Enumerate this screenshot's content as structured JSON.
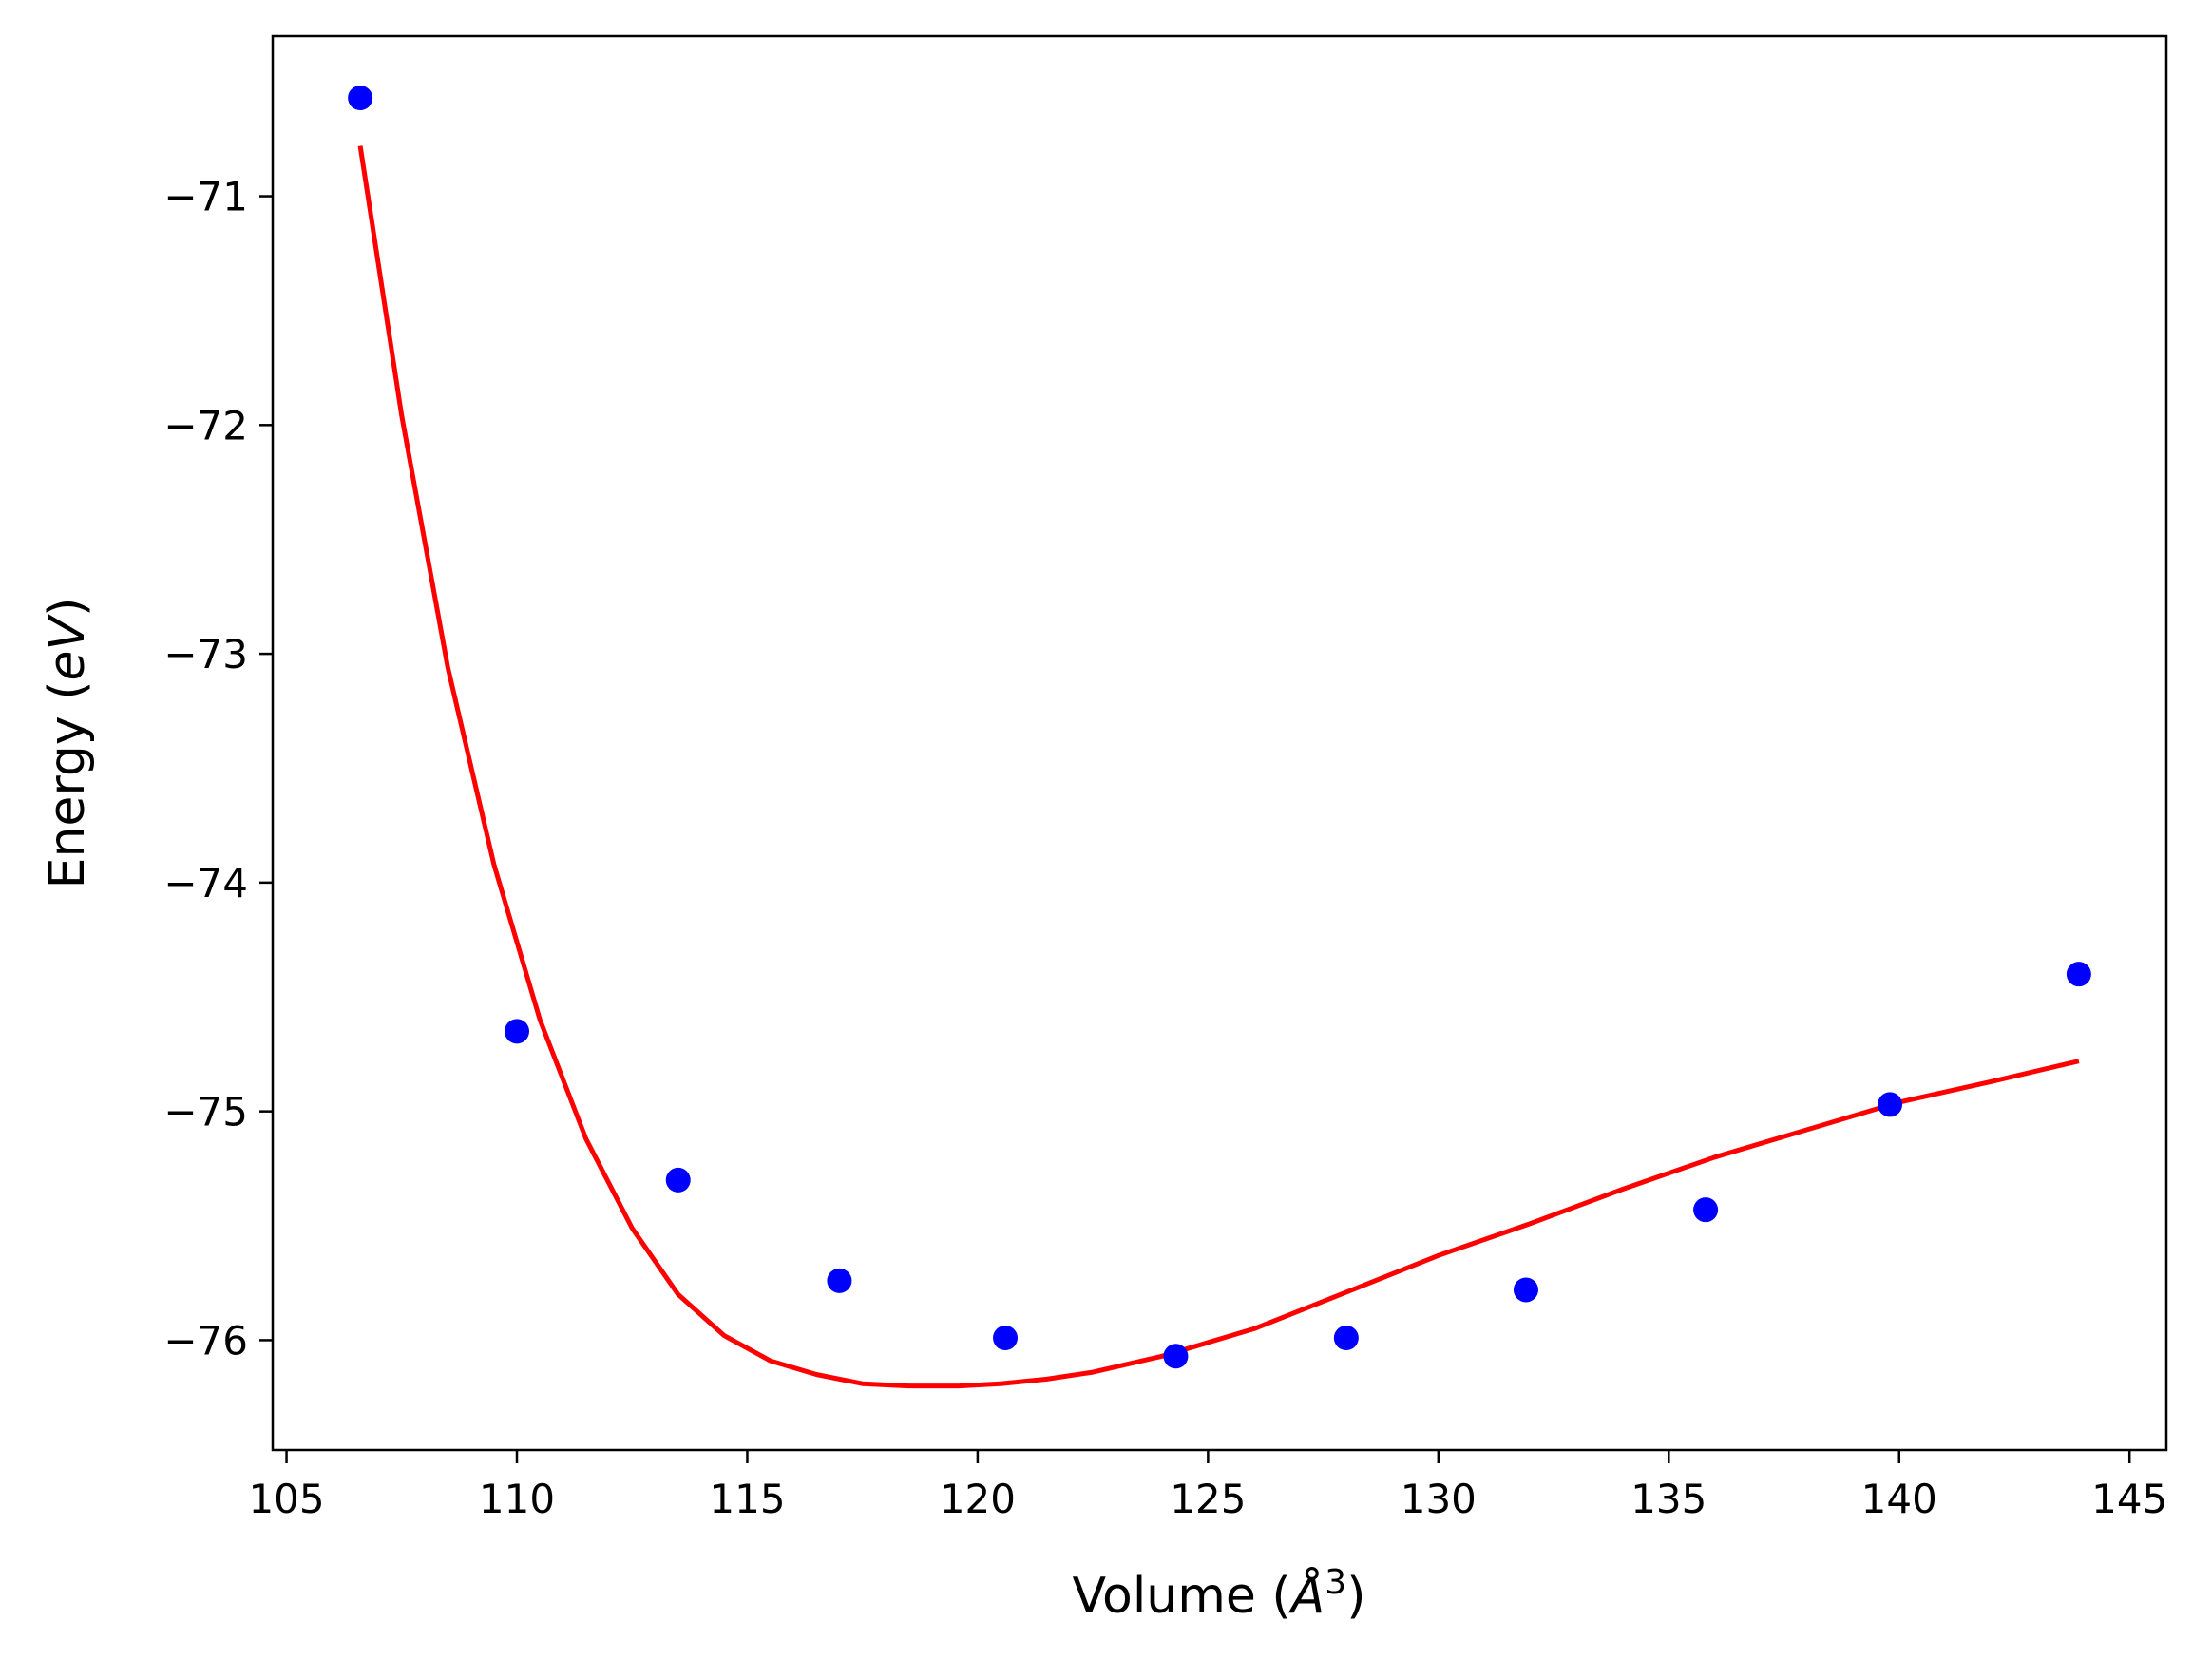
{
  "chart_data": {
    "type": "scatter",
    "title": "",
    "xlabel": "Volume (Å³)",
    "xlabel_parts": {
      "prefix": "Volume (",
      "italic": "Å",
      "sup": "3",
      "suffix": ")"
    },
    "ylabel": "Energy (eV)",
    "ylabel_parts": {
      "prefix": "Energy (",
      "italic": "eV",
      "suffix": ")"
    },
    "xlim": [
      104.7,
      145.8
    ],
    "ylim": [
      -76.48,
      -70.3
    ],
    "x_ticks": [
      105,
      110,
      115,
      120,
      125,
      130,
      135,
      140,
      145
    ],
    "x_tick_labels": [
      "105",
      "110",
      "115",
      "120",
      "125",
      "130",
      "135",
      "140",
      "145"
    ],
    "y_ticks": [
      -76,
      -75,
      -74,
      -73,
      -72,
      -71
    ],
    "y_tick_labels": [
      "−76",
      "−75",
      "−74",
      "−73",
      "−72",
      "−71"
    ],
    "grid": false,
    "series": [
      {
        "kind": "points",
        "color": "#0000ff",
        "x": [
          106.6,
          110.0,
          113.5,
          117.0,
          120.6,
          124.3,
          128.0,
          131.9,
          135.8,
          139.8,
          143.9
        ],
        "y": [
          -70.57,
          -74.65,
          -75.3,
          -75.74,
          -75.99,
          -76.07,
          -75.99,
          -75.78,
          -75.43,
          -74.97,
          -74.4
        ]
      },
      {
        "kind": "line",
        "color": "#ff0000",
        "x": [
          106.6,
          107.5,
          108.5,
          109.5,
          110.5,
          111.5,
          112.5,
          113.5,
          114.5,
          115.5,
          116.5,
          117.5,
          118.5,
          119.6,
          120.5,
          121.5,
          122.5,
          124.0,
          126.0,
          128.0,
          130.0,
          132.0,
          134.0,
          136.0,
          138.0,
          140.0,
          142.0,
          143.9
        ],
        "y": [
          -70.78,
          -71.96,
          -73.06,
          -73.92,
          -74.6,
          -75.12,
          -75.51,
          -75.8,
          -75.98,
          -76.09,
          -76.15,
          -76.19,
          -76.2,
          -76.2,
          -76.19,
          -76.17,
          -76.14,
          -76.07,
          -75.95,
          -75.79,
          -75.63,
          -75.49,
          -75.34,
          -75.2,
          -75.08,
          -74.96,
          -74.87,
          -74.78
        ]
      }
    ]
  }
}
